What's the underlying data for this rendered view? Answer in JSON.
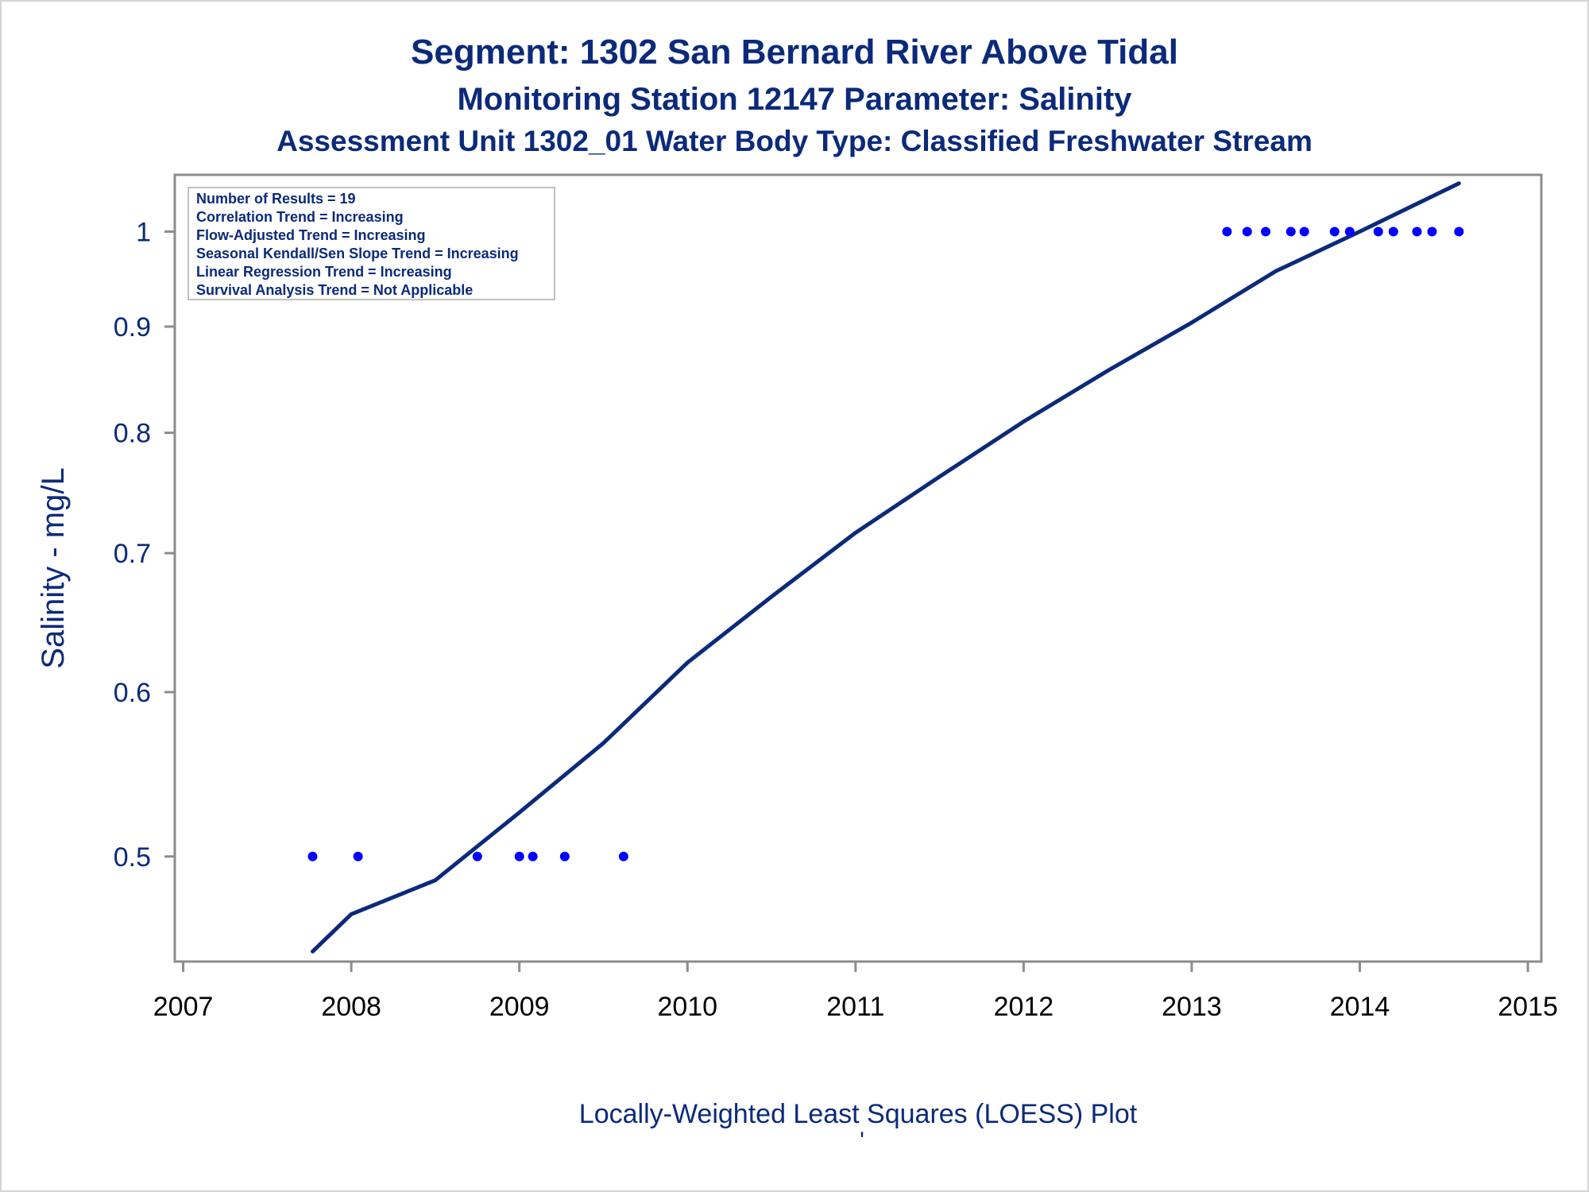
{
  "chart_data": {
    "type": "scatter",
    "titles": [
      "Segment: 1302  San Bernard River Above Tidal",
      "Monitoring Station 12147 Parameter: Salinity",
      "Assessment Unit 1302_01   Water Body Type: Classified Freshwater Stream"
    ],
    "ylabel": "Salinity - mg/L",
    "xlabel": "Locally-Weighted Least Squares (LOESS) Plot",
    "footnote": "'",
    "x_ticks": [
      "2007",
      "2008",
      "2009",
      "2010",
      "2011",
      "2012",
      "2013",
      "2014",
      "2015"
    ],
    "y_ticks": [
      "0.5",
      "0.6",
      "0.7",
      "0.8",
      "0.9",
      "1"
    ],
    "y_scale": "log",
    "xlim": [
      2006.95,
      2015.08
    ],
    "ylim": [
      0.445,
      1.065
    ],
    "stats_box": [
      "Number of Results = 19",
      "Correlation Trend = Increasing",
      "Flow-Adjusted Trend = Increasing",
      "Seasonal Kendall/Sen Slope Trend = Increasing",
      "Linear Regression Trend = Increasing",
      "Survival Analysis Trend = Not Applicable"
    ],
    "legend_placement": "top-left",
    "grid": false,
    "series": [
      {
        "kind": "points",
        "color": "#0000ff",
        "x": [
          2007.77,
          2008.04,
          2008.75,
          2009.0,
          2009.08,
          2009.27,
          2009.62,
          2013.21,
          2013.33,
          2013.44,
          2013.59,
          2013.67,
          2013.85,
          2013.94,
          2014.11,
          2014.2,
          2014.34,
          2014.43,
          2014.59
        ],
        "y": [
          0.5,
          0.5,
          0.5,
          0.5,
          0.5,
          0.5,
          0.5,
          1,
          1,
          1,
          1,
          1,
          1,
          1,
          1,
          1,
          1,
          1,
          1
        ]
      },
      {
        "kind": "loess",
        "color": "#0b2a7a",
        "x": [
          2007.77,
          2008.0,
          2008.5,
          2009.0,
          2009.5,
          2010.0,
          2010.5,
          2011.0,
          2011.5,
          2012.0,
          2012.5,
          2013.0,
          2013.5,
          2014.0,
          2014.59
        ],
        "y": [
          0.45,
          0.469,
          0.487,
          0.525,
          0.567,
          0.62,
          0.667,
          0.716,
          0.762,
          0.81,
          0.857,
          0.904,
          0.957,
          1.0,
          1.055
        ]
      }
    ]
  }
}
